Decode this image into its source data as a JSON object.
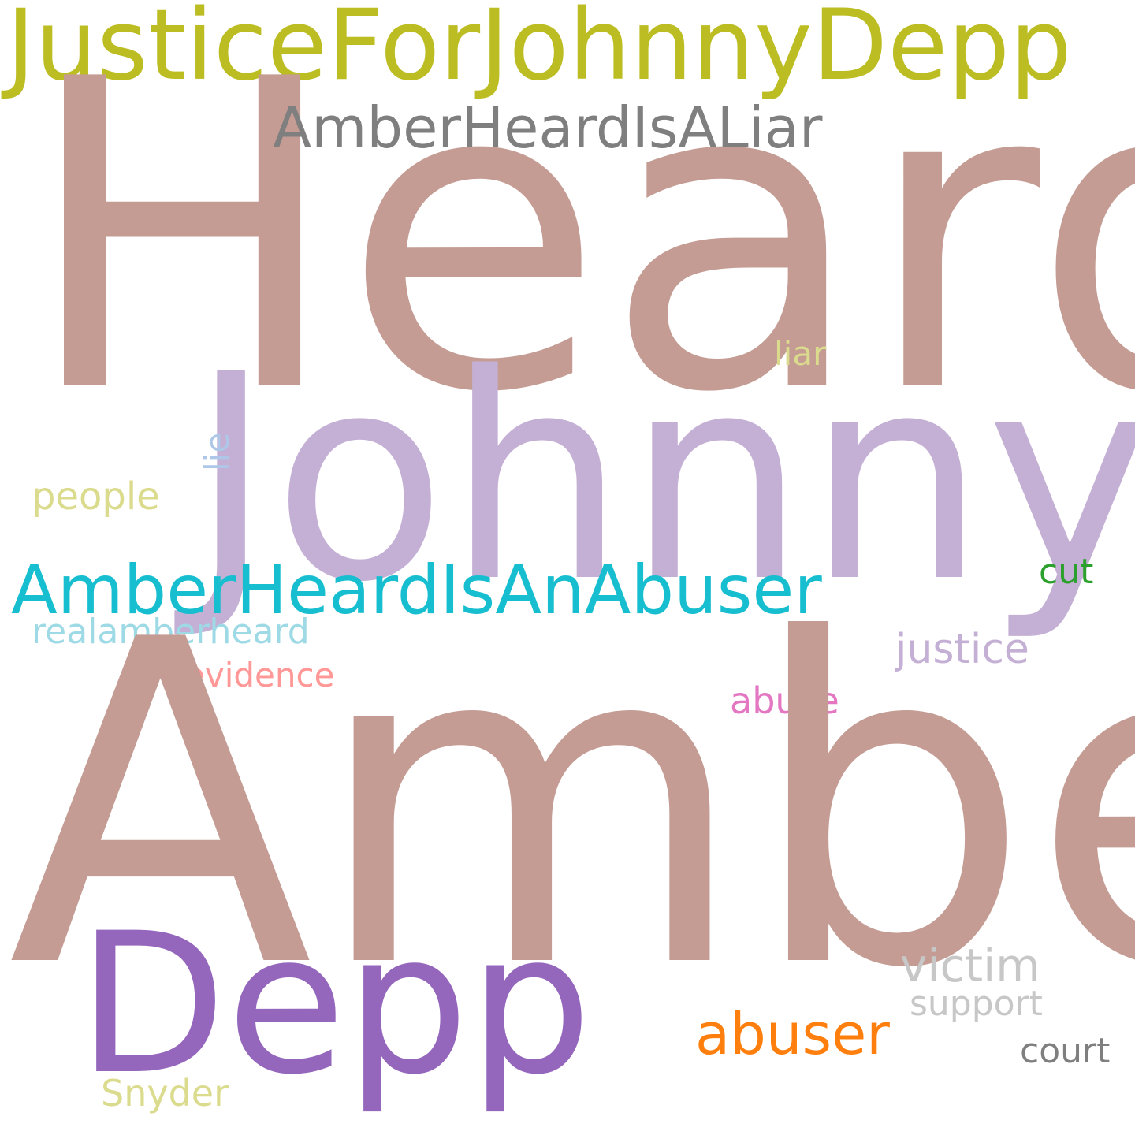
{
  "words": {
    "justiceforjohnnydepp": {
      "text": "JusticeForJohnnyDepp",
      "color": "#bcbd22"
    },
    "heard": {
      "text": "Heard",
      "color": "#c49c94"
    },
    "amberheardisaliar": {
      "text": "AmberHeardIsALiar",
      "color": "#7f7f7f"
    },
    "liar": {
      "text": "liar",
      "color": "#dbdb8d"
    },
    "johnny": {
      "text": "Johnny",
      "color": "#c5b0d5"
    },
    "lie": {
      "text": "lie",
      "color": "#aec7e8"
    },
    "people": {
      "text": "people",
      "color": "#dbdb8d"
    },
    "amberheardisanabuser": {
      "text": "AmberHeardIsAnAbuser",
      "color": "#17becf"
    },
    "cut": {
      "text": "cut",
      "color": "#2ca02c"
    },
    "realamberheard": {
      "text": "realamberheard",
      "color": "#9edae5"
    },
    "justice": {
      "text": "justice",
      "color": "#c5b0d5"
    },
    "evidence": {
      "text": "evidence",
      "color": "#ff9896"
    },
    "abuse": {
      "text": "abuse",
      "color": "#e377c2"
    },
    "amber": {
      "text": "Amber",
      "color": "#c49c94"
    },
    "depp": {
      "text": "Depp",
      "color": "#9467bd"
    },
    "victim": {
      "text": "victim",
      "color": "#c7c7c7"
    },
    "abuser": {
      "text": "abuser",
      "color": "#ff7f0e"
    },
    "support": {
      "text": "support",
      "color": "#c7c7c7"
    },
    "court": {
      "text": "court",
      "color": "#7f7f7f"
    },
    "snyder": {
      "text": "Snyder",
      "color": "#dbdb8d"
    }
  }
}
